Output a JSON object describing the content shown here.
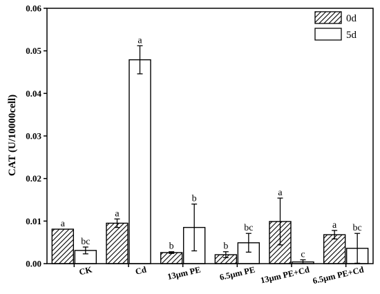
{
  "chart_data": {
    "type": "bar",
    "title": "",
    "xlabel": "",
    "ylabel": "CAT (U/10000cell)",
    "ylim": [
      0,
      0.06
    ],
    "yticks": [
      "0.00",
      "0.01",
      "0.02",
      "0.03",
      "0.04",
      "0.05",
      "0.06"
    ],
    "categories": [
      "CK",
      "Cd",
      "13μm PE",
      "6.5μm PE",
      "13μm PE+Cd",
      "6.5μm PE+Cd"
    ],
    "legend_position": "top-right",
    "grid": false,
    "series": [
      {
        "name": "0d",
        "pattern": "hatched",
        "values": [
          0.0081,
          0.0095,
          0.0026,
          0.0021,
          0.0099,
          0.0068
        ],
        "errors": [
          0.0,
          0.001,
          0.0002,
          0.0007,
          0.0055,
          0.001
        ],
        "labels": [
          "a",
          "a",
          "b",
          "b",
          "a",
          "a"
        ]
      },
      {
        "name": "5d",
        "pattern": "open",
        "values": [
          0.0031,
          0.0479,
          0.0085,
          0.0049,
          0.0004,
          0.0036
        ],
        "errors": [
          0.0008,
          0.0033,
          0.0055,
          0.0022,
          0.0005,
          0.0035
        ],
        "labels": [
          "bc",
          "a",
          "b",
          "bc",
          "c",
          "bc"
        ]
      }
    ]
  }
}
